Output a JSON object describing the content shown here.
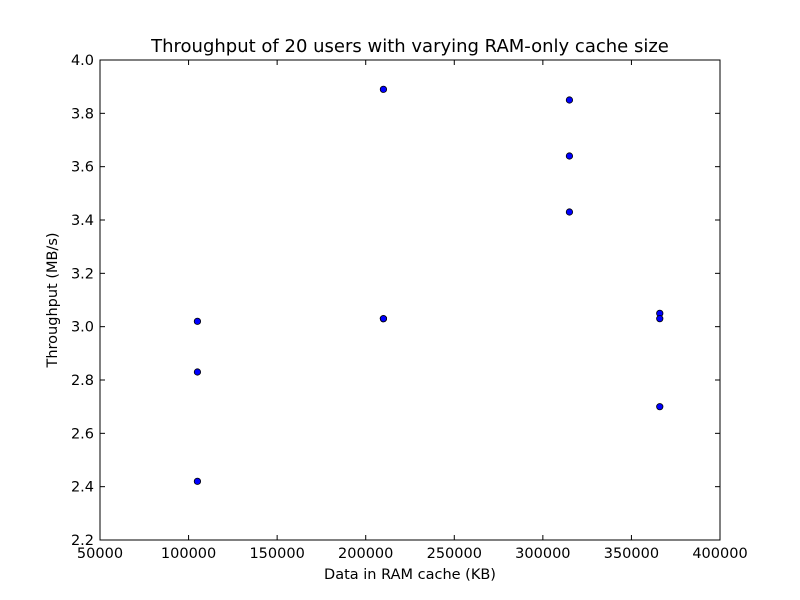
{
  "chart_data": {
    "type": "scatter",
    "title": "Throughput of 20 users with varying RAM-only cache size",
    "xlabel": "Data in RAM cache (KB)",
    "ylabel": "Throughput (MB/s)",
    "xlim": [
      50000,
      400000
    ],
    "ylim": [
      2.2,
      4.0
    ],
    "x_ticks": [
      50000,
      100000,
      150000,
      200000,
      250000,
      300000,
      350000,
      400000
    ],
    "x_tick_labels": [
      "50000",
      "100000",
      "150000",
      "200000",
      "250000",
      "300000",
      "350000",
      "400000"
    ],
    "y_ticks": [
      2.2,
      2.4,
      2.6,
      2.8,
      3.0,
      3.2,
      3.4,
      3.6,
      3.8,
      4.0
    ],
    "y_tick_labels": [
      "2.2",
      "2.4",
      "2.6",
      "2.8",
      "3.0",
      "3.2",
      "3.4",
      "3.6",
      "3.8",
      "4.0"
    ],
    "grid": false,
    "marker_color": "#0000ff",
    "points": [
      {
        "x": 105000,
        "y": 3.02
      },
      {
        "x": 105000,
        "y": 2.83
      },
      {
        "x": 105000,
        "y": 2.42
      },
      {
        "x": 210000,
        "y": 3.89
      },
      {
        "x": 210000,
        "y": 3.03
      },
      {
        "x": 210000,
        "y": 3.03
      },
      {
        "x": 315000,
        "y": 3.85
      },
      {
        "x": 315000,
        "y": 3.64
      },
      {
        "x": 315000,
        "y": 3.43
      },
      {
        "x": 366000,
        "y": 3.05
      },
      {
        "x": 366000,
        "y": 3.03
      },
      {
        "x": 366000,
        "y": 2.7
      }
    ]
  }
}
